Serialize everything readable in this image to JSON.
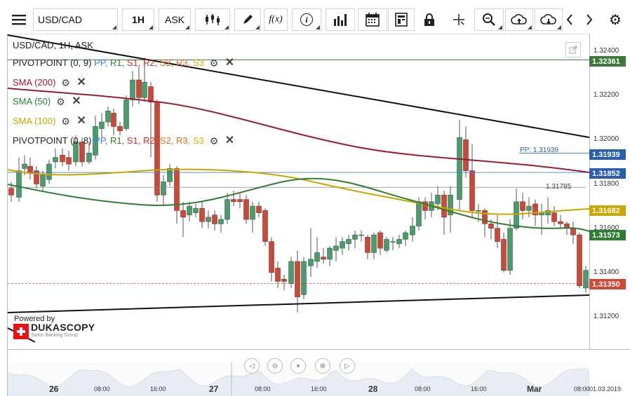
{
  "toolbar": {
    "symbol": "USD/CAD",
    "timeframe": "1H",
    "price_side": "ASK",
    "fx_label": "f(x)",
    "info_label": "i"
  },
  "chart": {
    "header": "USD/CAD, 1H, ASK",
    "legends": {
      "pivot1": {
        "name": "PIVOTPOINT (0, 9)",
        "pp": "PP,",
        "r1": "R1,",
        "s1": "S1,",
        "r2": "R2,",
        "s2": "S2,",
        "r3": "R3,",
        "s3": "S3"
      },
      "sma200": "SMA (200)",
      "sma50": "SMA (50)",
      "sma100": "SMA (100)",
      "pivot2": {
        "name": "PIVOTPOINT (0, 8)",
        "pp": "PP,",
        "r1": "R1,",
        "s1": "S1,",
        "r2": "R2,",
        "s2": "S2,",
        "r3": "R3,",
        "s3": "S3"
      }
    },
    "y_axis": [
      "1.32400",
      "1.32200",
      "1.32000",
      "1.31800",
      "1.31600",
      "1.31400",
      "1.31200"
    ],
    "price_boxes": {
      "r_level": "1.32361",
      "pp_value": "1.31939",
      "blue_line": "1.31852",
      "sma100": "1.31682",
      "sma50": "1.31573",
      "current": "1.31350"
    },
    "pp_label": "PP: 1.31939",
    "crosshair_value": "1.31785",
    "x_axis": [
      {
        "label": "26",
        "big": true
      },
      {
        "label": "08:00"
      },
      {
        "label": "16:00"
      },
      {
        "label": "27",
        "big": true
      },
      {
        "label": "08:00"
      },
      {
        "label": "16:00"
      },
      {
        "label": "28",
        "big": true
      },
      {
        "label": "08:00"
      },
      {
        "label": "16:00"
      },
      {
        "label": "Mar",
        "big": true
      },
      {
        "label": "08:00"
      }
    ],
    "date_label": "01.03.2019",
    "powered_by": "Powered by",
    "brand": "DUKASCOPY",
    "brand_sub": "Swiss Banking Group"
  },
  "colors": {
    "up": "#4e9a6f",
    "down": "#c9493a",
    "sma200": "#9b1c31",
    "sma50": "#2e7d32",
    "sma100": "#c9a600",
    "pp_blue": "#3a7fd5",
    "r_color": "#2e7d32",
    "s_color": "#d32f2f",
    "r2s2": "#e07020",
    "r3s3": "#c9b400",
    "current": "#d04a38"
  }
}
